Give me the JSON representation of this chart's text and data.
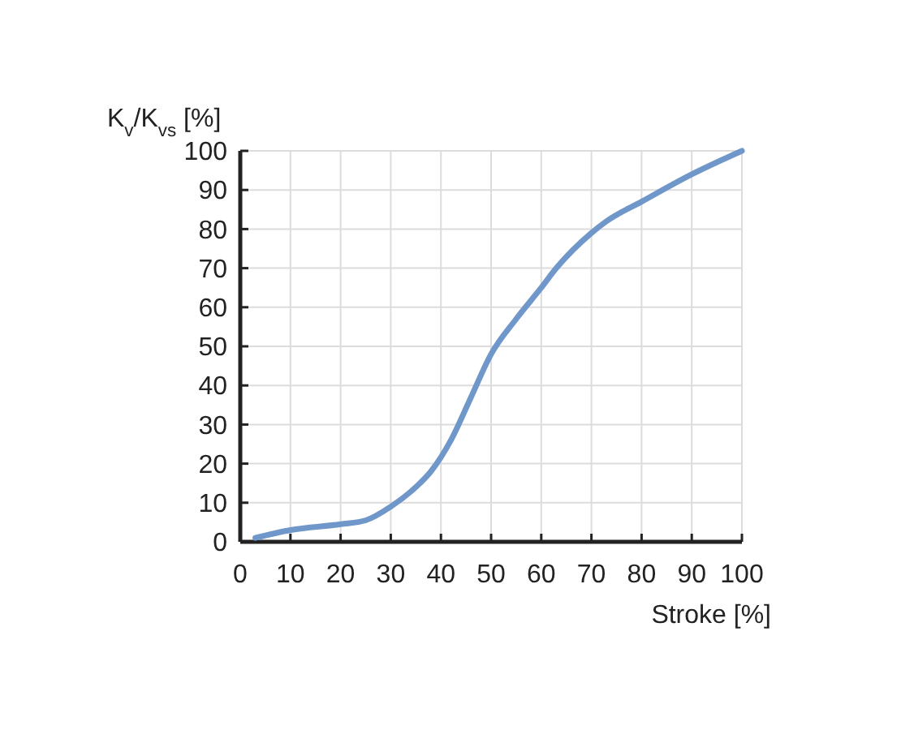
{
  "chart_data": {
    "type": "line",
    "xlabel": "Stroke [%]",
    "ylabel": "K$_{v}$/K$_{vs}$ [%]",
    "x": [
      3,
      10,
      20,
      25,
      30,
      35,
      38,
      42,
      46,
      50,
      55,
      60,
      63,
      70,
      73,
      80,
      90,
      100
    ],
    "series": [
      {
        "color": "#6f97c9",
        "values": [
          1,
          3,
          4.5,
          5.5,
          9,
          14,
          18,
          26,
          37,
          48,
          57,
          65,
          70,
          79,
          82,
          87,
          94,
          100
        ]
      }
    ],
    "xlim": [
      0,
      100
    ],
    "xticks": [
      0,
      10,
      20,
      30,
      40,
      50,
      60,
      70,
      80,
      90,
      100
    ],
    "ylim": [
      0,
      100
    ],
    "yticks": [
      0,
      10,
      20,
      30,
      40,
      50,
      60,
      70,
      80,
      90,
      100
    ],
    "grid": true,
    "marker": "none",
    "line_style": "solid"
  }
}
